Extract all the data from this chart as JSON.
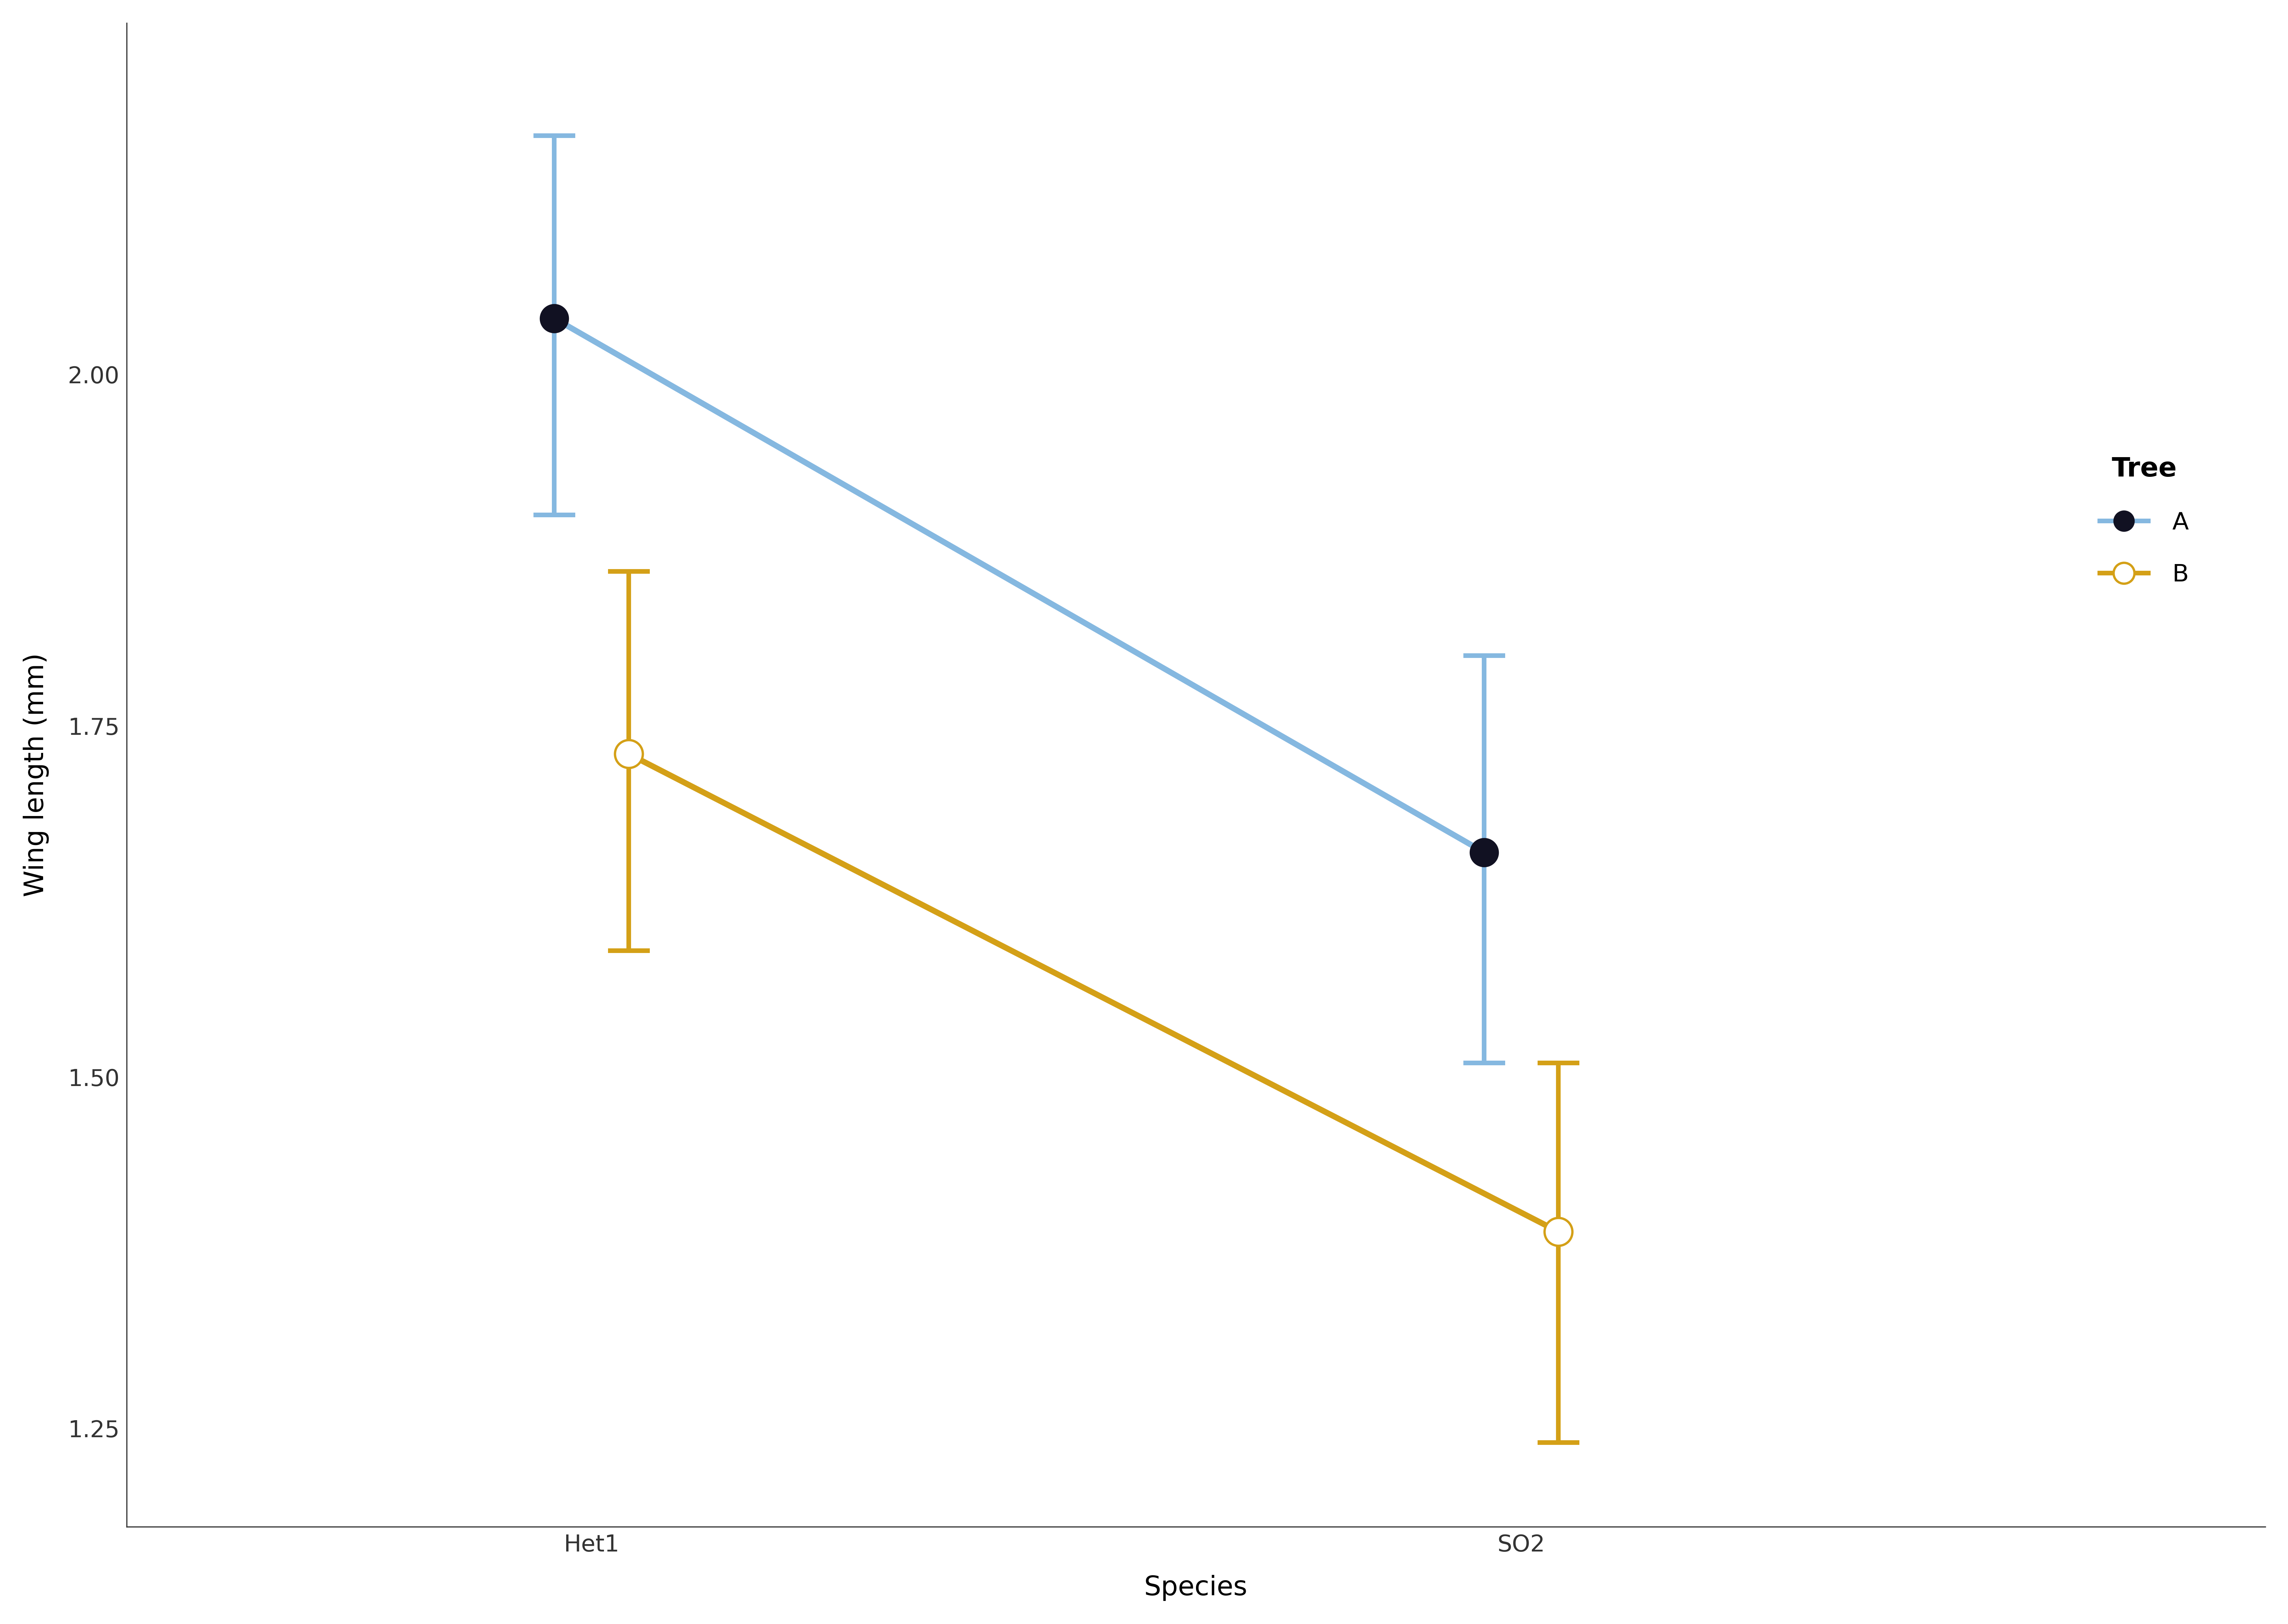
{
  "species": [
    "Het1",
    "SO2"
  ],
  "tree_A_means": [
    2.04,
    1.66
  ],
  "tree_B_means": [
    1.73,
    1.39
  ],
  "tree_A_err_lo": [
    0.14,
    0.15
  ],
  "tree_A_err_hi": [
    0.13,
    0.14
  ],
  "tree_B_err_lo": [
    0.14,
    0.15
  ],
  "tree_B_err_hi": [
    0.13,
    0.12
  ],
  "line_color_A": "#85B8E0",
  "line_color_B": "#D4A017",
  "marker_A_face": "#111122",
  "xlabel": "Species",
  "ylabel": "Wing length (mm)",
  "legend_title": "Tree",
  "legend_A": "A",
  "legend_B": "B",
  "ylim_min": 1.18,
  "ylim_max": 2.25,
  "yticks": [
    1.25,
    1.5,
    1.75,
    2.0
  ],
  "bg_color": "#ffffff",
  "axis_color": "#333333",
  "label_fontsize": 58,
  "tick_fontsize": 50,
  "legend_fontsize": 52,
  "legend_title_fontsize": 58,
  "marker_size": 30,
  "line_width": 5,
  "cap_size": 18,
  "error_line_width": 5
}
